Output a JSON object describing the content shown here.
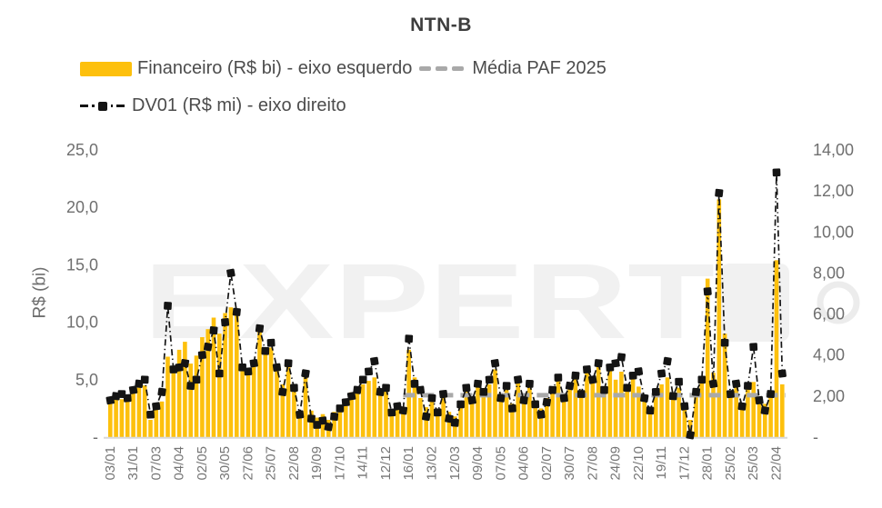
{
  "title": "NTN-B",
  "legend": {
    "financeiro": "Financeiro (R$ bi) - eixo esquerdo",
    "media": "Média PAF 2025",
    "dv01": "DV01 (R$ mi) - eixo direito"
  },
  "watermark": {
    "text": "EXPERT"
  },
  "colors": {
    "bar": "#FDC00D",
    "media": "#A9A9A9",
    "dv01": "#141414",
    "axis_text": "#6F6F6F",
    "x_tick_text": "#757575",
    "legend_text": "#4C4C4C",
    "baseline": "#D9D9D9",
    "watermark": "#F1F1F1"
  },
  "chart_data": {
    "type": "bar+line",
    "title": "NTN-B",
    "ylabel_left": "R$ (bi)",
    "left_axis": {
      "min": 0,
      "max": 25,
      "tick_values": [
        25,
        20,
        15,
        10,
        5,
        0
      ],
      "tick_labels": [
        "25,0",
        "20,0",
        "15,0",
        "10,0",
        "5,0",
        "-"
      ]
    },
    "right_axis": {
      "min": 0,
      "max": 14,
      "tick_values": [
        14,
        12,
        10,
        8,
        6,
        4,
        2,
        0
      ],
      "tick_labels": [
        "14,00",
        "12,00",
        "10,00",
        "8,00",
        "6,00",
        "4,00",
        "2,00",
        "-"
      ]
    },
    "x_tick_labels": [
      "03/01",
      "31/01",
      "07/03",
      "04/04",
      "02/05",
      "30/05",
      "27/06",
      "25/07",
      "22/08",
      "19/09",
      "17/10",
      "14/11",
      "12/12",
      "16/01",
      "13/02",
      "12/03",
      "09/04",
      "07/05",
      "04/06",
      "02/07",
      "30/07",
      "27/08",
      "24/09",
      "22/10",
      "19/11",
      "17/12",
      "28/01",
      "25/02",
      "25/03",
      "22/04"
    ],
    "ticks_every": 4,
    "media_paf": {
      "name": "Média PAF 2025",
      "value": 3.65,
      "start_index": 51,
      "axis": "left"
    },
    "series": [
      {
        "name": "Financeiro (R$ bi)",
        "axis": "left",
        "type": "bar",
        "values": [
          3.2,
          3.3,
          3.3,
          3.2,
          3.8,
          4.3,
          4.5,
          1.5,
          3.0,
          3.1,
          7.0,
          6.0,
          7.6,
          8.3,
          6.4,
          7.1,
          8.7,
          9.4,
          10.4,
          9.0,
          10.8,
          11.3,
          10.6,
          6.3,
          5.6,
          6.4,
          9.4,
          7.2,
          7.8,
          6.2,
          4.6,
          6.5,
          4.4,
          2.1,
          5.8,
          2.3,
          1.7,
          2.0,
          1.5,
          2.2,
          2.8,
          3.3,
          3.9,
          4.4,
          4.6,
          4.9,
          5.2,
          3.8,
          4.4,
          2.4,
          3.0,
          2.6,
          7.6,
          5.2,
          3.4,
          2.6,
          3.3,
          2.4,
          3.6,
          2.2,
          1.8,
          3.0,
          4.2,
          3.5,
          4.4,
          3.8,
          4.6,
          5.9,
          3.8,
          4.4,
          2.9,
          5.0,
          3.6,
          4.6,
          3.2,
          2.5,
          3.4,
          4.3,
          5.0,
          3.6,
          4.7,
          5.4,
          4.1,
          5.8,
          5.2,
          6.3,
          4.4,
          5.9,
          5.0,
          5.7,
          4.2,
          5.4,
          4.4,
          3.4,
          2.6,
          3.8,
          4.6,
          5.2,
          3.5,
          4.3,
          2.8,
          1.5,
          3.6,
          4.7,
          13.8,
          5.6,
          20.7,
          9.0,
          3.8,
          4.4,
          3.0,
          4.2,
          4.8,
          3.4,
          2.9,
          3.7,
          15.4,
          4.6
        ]
      },
      {
        "name": "DV01 (R$ mi)",
        "axis": "right",
        "type": "line",
        "values": [
          1.8,
          2.0,
          2.1,
          1.9,
          2.3,
          2.6,
          2.8,
          1.1,
          1.5,
          2.2,
          6.4,
          3.3,
          3.4,
          3.6,
          2.5,
          2.8,
          4.0,
          4.4,
          5.2,
          3.1,
          5.6,
          8.0,
          6.1,
          3.4,
          3.2,
          3.6,
          5.3,
          4.2,
          4.6,
          3.4,
          2.2,
          3.6,
          2.4,
          1.1,
          3.1,
          0.9,
          0.6,
          0.8,
          0.5,
          1.0,
          1.4,
          1.7,
          2.0,
          2.3,
          2.8,
          3.2,
          3.7,
          2.2,
          2.4,
          1.2,
          1.5,
          1.3,
          4.8,
          2.6,
          2.3,
          1.0,
          1.9,
          1.2,
          2.1,
          0.9,
          0.7,
          1.6,
          2.4,
          1.8,
          2.6,
          2.2,
          2.8,
          3.6,
          1.9,
          2.5,
          1.4,
          2.8,
          1.8,
          2.6,
          1.6,
          1.1,
          1.7,
          2.3,
          2.9,
          1.9,
          2.5,
          3.0,
          2.1,
          3.3,
          2.8,
          3.6,
          2.3,
          3.4,
          3.6,
          3.9,
          2.4,
          3.0,
          3.2,
          1.9,
          1.3,
          2.2,
          3.1,
          3.7,
          2.0,
          2.7,
          1.5,
          0.1,
          2.2,
          2.8,
          7.1,
          2.6,
          11.9,
          4.6,
          2.1,
          2.6,
          1.5,
          2.5,
          4.4,
          1.8,
          1.3,
          2.1,
          12.9,
          3.1
        ]
      }
    ]
  }
}
